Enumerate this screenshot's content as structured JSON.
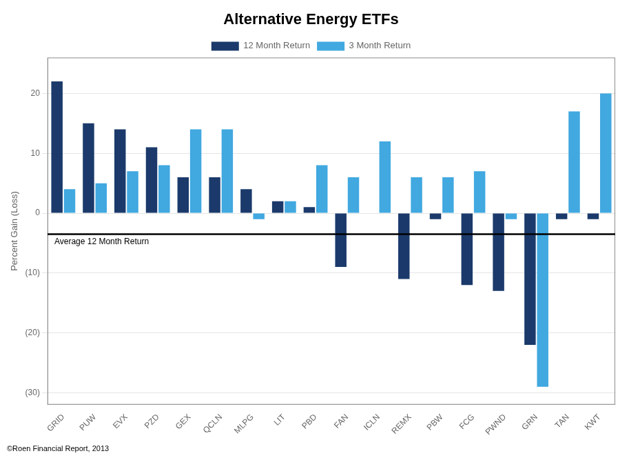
{
  "chart_data": {
    "type": "bar",
    "title": "Alternative Energy ETFs",
    "ylabel": "Percent Gain (Loss)",
    "categories": [
      "GRID",
      "PUW",
      "EVX",
      "PZD",
      "GEX",
      "QCLN",
      "MLPG",
      "LIT",
      "PBD",
      "FAN",
      "ICLN",
      "REMX",
      "PBW",
      "FCG",
      "PWND",
      "GRN",
      "TAN",
      "KWT"
    ],
    "series": [
      {
        "name": "12 Month Return",
        "color": "#1B3A6B",
        "values": [
          22,
          15,
          14,
          11,
          6,
          6,
          4,
          2,
          1,
          -9,
          0,
          -11,
          -1,
          -12,
          -13,
          -22,
          -1,
          -1
        ]
      },
      {
        "name": "3 Month Return",
        "color": "#41A8E0",
        "values": [
          4,
          5,
          7,
          8,
          14,
          14,
          -1,
          2,
          8,
          6,
          12,
          6,
          6,
          7,
          -1,
          -29,
          17,
          20
        ]
      }
    ],
    "ylim": [
      -32,
      26
    ],
    "yticks": [
      {
        "value": -30,
        "label": "(30)"
      },
      {
        "value": -20,
        "label": "(20)"
      },
      {
        "value": -10,
        "label": "(10)"
      },
      0,
      10,
      20
    ],
    "grid": true,
    "legend": "top",
    "annotations": [
      {
        "y": -3.5,
        "text": "Average 12 Month Return",
        "color": "#000000"
      }
    ],
    "footer": "©Roen Financial Report, 2013"
  }
}
